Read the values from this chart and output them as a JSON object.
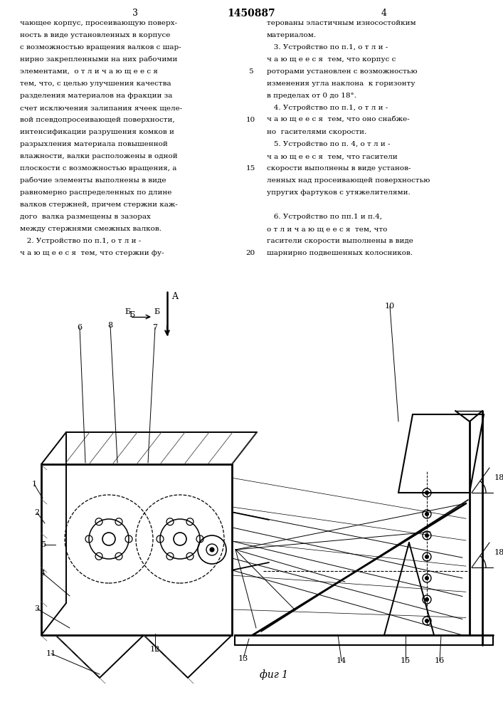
{
  "title": "1450887",
  "page_left": "3",
  "page_right": "4",
  "fig_label": "фиг 1",
  "bg_color": "#ffffff",
  "text_color": "#000000",
  "left_text": [
    "чающее корпус, просеивающую поверх-",
    "ность в виде установленных в корпусе",
    "с возможностью вращения валков с шар-",
    "нирно закрепленными на них рабочими",
    "элементами,  о т л и ч а ю щ е е с я",
    "тем, что, с целью улучшения качества",
    "разделения материалов на фракции за",
    "счет исключения залипания ячеек щеле-",
    "вой псевдопросеивающей поверхности,",
    "интенсификации разрушения комков и",
    "разрыхления материала повышенной",
    "влажности, валки расположены в одной",
    "плоскости с возможностью вращения, а",
    "рабочие элементы выполнены в виде",
    "равномерно распределенных по длине",
    "валков стержней, причем стержни каж-",
    "дого  валка размещены в зазорах",
    "между стержнями смежных валков.",
    "   2. Устройство по п.1, о т л и -",
    "ч а ю щ е е с я  тем, что стержни фу-"
  ],
  "right_text": [
    "терованы эластичным износостойким",
    "материалом.",
    "   3. Устройство по п.1, о т л и -",
    "ч а ю щ е е с я  тем, что корпус с",
    "роторами установлен с возможностью",
    "изменения угла наклона  к горизонту",
    "в пределах от 0 до 18°.",
    "   4. Устройство по п.1, о т л и -",
    "ч а ю щ е е с я  тем, что оно снабже-",
    "но  гасителями скорости.",
    "   5. Устройство по п. 4, о т л и -",
    "ч а ю щ е е с я  тем, что гасители",
    "скорости выполнены в виде установ-",
    "ленных над просеивающей поверхностью",
    "упругих фартуков с утяжелителями.",
    "",
    "   6. Устройство по пп.1 и п.4,",
    "о т л и ч а ю щ е е с я  тем, что",
    "гасители скорости выполнены в виде",
    "шарнирно подвешенных колосников."
  ],
  "line_numbers": [
    "5",
    "10",
    "15",
    "20"
  ],
  "line_number_rows": [
    4,
    8,
    12,
    19
  ]
}
